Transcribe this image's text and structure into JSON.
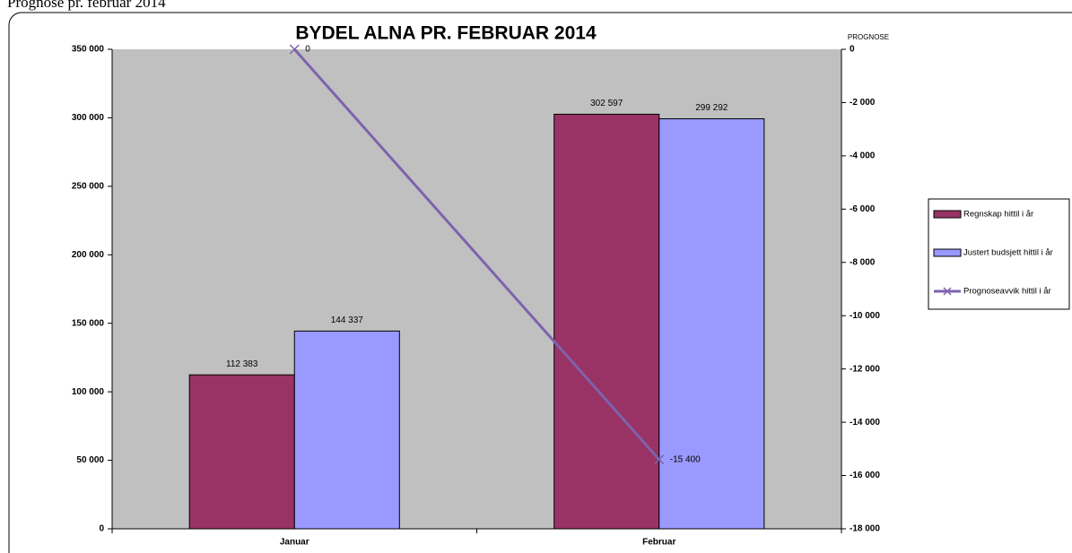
{
  "heading": "Prognose pr. februar 2014",
  "chart_data": {
    "type": "bar",
    "title": "BYDEL ALNA PR. FEBRUAR 2014",
    "y2_label": "PROGNOSE",
    "categories": [
      "Januar",
      "Februar"
    ],
    "series": [
      {
        "name": "Regnskap hittil i år",
        "type": "bar",
        "color": "#993366",
        "values": [
          112383,
          302597
        ],
        "value_labels": [
          "112 383",
          "302 597"
        ]
      },
      {
        "name": "Justert budsjett hittil i år",
        "type": "bar",
        "color": "#9999ff",
        "values": [
          144337,
          299292
        ],
        "value_labels": [
          "144 337",
          "299 292"
        ]
      },
      {
        "name": "Prognoseavvik hittil i år",
        "type": "line",
        "axis": "y2",
        "color": "#7e62ad",
        "values": [
          0,
          -15400
        ],
        "value_labels": [
          "0",
          "-15 400"
        ]
      }
    ],
    "ylim": [
      0,
      350000
    ],
    "yticks": [
      0,
      {
        "value": 50000,
        "label": "50 000"
      },
      {
        "value": 100000,
        "label": "100 000"
      },
      {
        "value": 150000,
        "label": "150 000"
      },
      {
        "value": 200000,
        "label": "200 000"
      },
      {
        "value": 250000,
        "label": "250 000"
      },
      {
        "value": 300000,
        "label": "300 000"
      },
      {
        "value": 350000,
        "label": "350 000"
      }
    ],
    "y2lim": [
      -18000,
      0
    ],
    "y2ticks": [
      0,
      {
        "value": -2000,
        "label": "-2 000"
      },
      {
        "value": -4000,
        "label": "-4 000"
      },
      {
        "value": -6000,
        "label": "-6 000"
      },
      {
        "value": -8000,
        "label": "-8 000"
      },
      {
        "value": -10000,
        "label": "-10 000"
      },
      {
        "value": -12000,
        "label": "-12 000"
      },
      {
        "value": -14000,
        "label": "-14 000"
      },
      {
        "value": -16000,
        "label": "-16 000"
      },
      {
        "value": -18000,
        "label": "-18 000"
      }
    ],
    "grid": false,
    "legend": "right"
  }
}
